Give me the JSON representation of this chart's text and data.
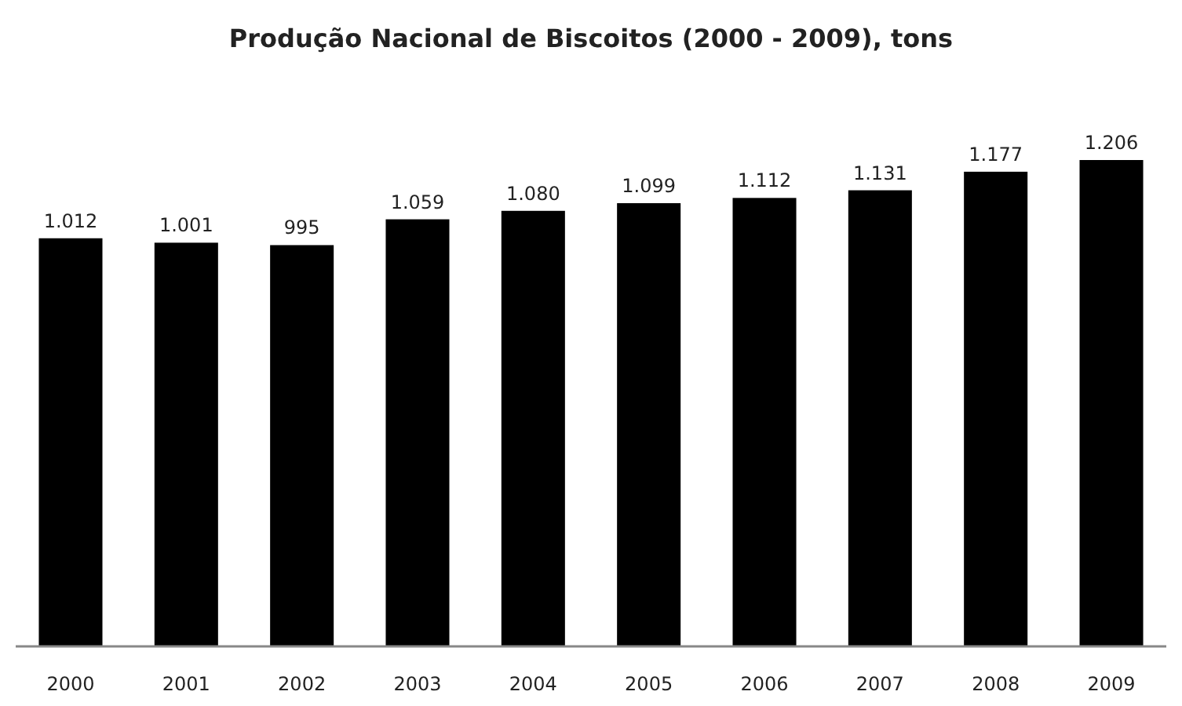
{
  "chart_data": {
    "type": "bar",
    "title": "Produção Nacional de Biscoitos (2000 - 2009), tons",
    "categories": [
      "2000",
      "2001",
      "2002",
      "2003",
      "2004",
      "2005",
      "2006",
      "2007",
      "2008",
      "2009"
    ],
    "values": [
      1012,
      1001,
      995,
      1059,
      1080,
      1099,
      1112,
      1131,
      1177,
      1206
    ],
    "value_labels": [
      "1.012",
      "1.001",
      "995",
      "1.059",
      "1.080",
      "1.099",
      "1.112",
      "1.131",
      "1.177",
      "1.206"
    ],
    "color": "#000000",
    "tick_labels": "x"
  }
}
